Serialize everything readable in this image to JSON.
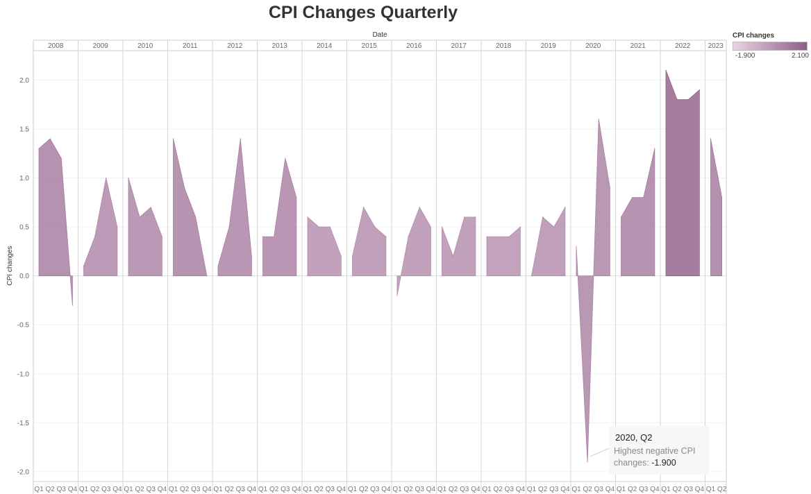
{
  "chart_data": {
    "type": "area",
    "title": "CPI Changes Quarterly",
    "xlabel": "Date",
    "ylabel": "CPI changes",
    "ylim": [
      -2.1,
      2.3
    ],
    "yticks": [
      "2.0",
      "1.5",
      "1.0",
      "0.5",
      "0.0",
      "-0.5",
      "-1.0",
      "-1.5",
      "-2.0"
    ],
    "ytick_values": [
      2.0,
      1.5,
      1.0,
      0.5,
      0.0,
      -0.5,
      -1.0,
      -1.5,
      -2.0
    ],
    "quarter_labels": [
      "Q1",
      "Q2",
      "Q3",
      "Q4"
    ],
    "years": [
      {
        "year": "2008",
        "values": [
          1.3,
          1.4,
          1.2,
          -0.3
        ]
      },
      {
        "year": "2009",
        "values": [
          0.1,
          0.4,
          1.0,
          0.5
        ]
      },
      {
        "year": "2010",
        "values": [
          1.0,
          0.6,
          0.7,
          0.4
        ]
      },
      {
        "year": "2011",
        "values": [
          1.4,
          0.9,
          0.6,
          0.0
        ]
      },
      {
        "year": "2012",
        "values": [
          0.1,
          0.5,
          1.4,
          0.2
        ]
      },
      {
        "year": "2013",
        "values": [
          0.4,
          0.4,
          1.2,
          0.8
        ]
      },
      {
        "year": "2014",
        "values": [
          0.6,
          0.5,
          0.5,
          0.2
        ]
      },
      {
        "year": "2015",
        "values": [
          0.2,
          0.7,
          0.5,
          0.4
        ]
      },
      {
        "year": "2016",
        "values": [
          -0.2,
          0.4,
          0.7,
          0.5
        ]
      },
      {
        "year": "2017",
        "values": [
          0.5,
          0.2,
          0.6,
          0.6
        ]
      },
      {
        "year": "2018",
        "values": [
          0.4,
          0.4,
          0.4,
          0.5
        ]
      },
      {
        "year": "2019",
        "values": [
          0.0,
          0.6,
          0.5,
          0.7
        ]
      },
      {
        "year": "2020",
        "values": [
          0.3,
          -1.9,
          1.6,
          0.9
        ]
      },
      {
        "year": "2021",
        "values": [
          0.6,
          0.8,
          0.8,
          1.3
        ]
      },
      {
        "year": "2022",
        "values": [
          2.1,
          1.8,
          1.8,
          1.9
        ]
      },
      {
        "year": "2023",
        "values": [
          1.4,
          0.8
        ]
      }
    ],
    "color_legend": {
      "title": "CPI changes",
      "min_label": "-1.900",
      "max_label": "2.100",
      "min_value": -1.9,
      "max_value": 2.1,
      "min_color": "#ead3e6",
      "max_color": "#8f5e88"
    },
    "annotation": {
      "title": "2020, Q2",
      "line1": "Highest negative CPI",
      "line2_prefix": "changes: ",
      "value": "-1.900"
    },
    "grid": true
  }
}
